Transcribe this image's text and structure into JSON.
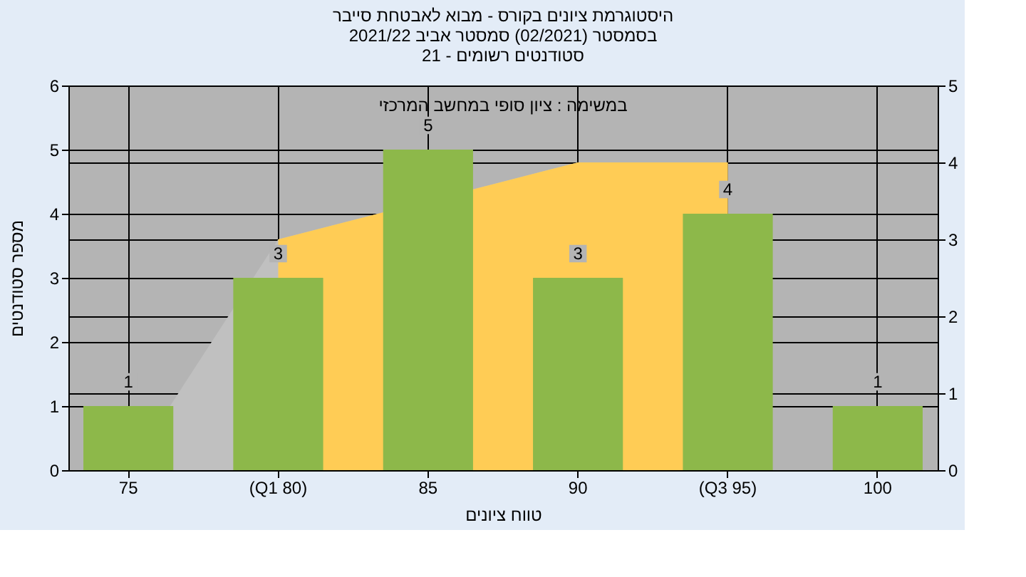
{
  "chart_data": {
    "type": "bar",
    "title": [
      "היסטוגרמת ציונים בקורס - מבוא לאבטחת סייבר",
      "בסמסטר  (02/2021)  סמסטר אביב 2021/22",
      "סטודנטים רשומים - 21"
    ],
    "annotations": [
      "במשימה : ציון סופי במחשב המרכזי"
    ],
    "xlabel": "טווח ציונים",
    "ylabel": "מספר סטודנטים",
    "categories": [
      "75",
      "(Q1 80)",
      "85",
      "90",
      "(Q3 95)",
      "100"
    ],
    "series": [
      {
        "color": "#8db84a",
        "values": [
          1,
          3,
          5,
          3,
          4,
          1
        ],
        "value_labels": [
          "1",
          "3",
          "5",
          "3",
          "4",
          "1"
        ]
      },
      {
        "type": "area",
        "axis": "y2",
        "color": "#c0c0c0",
        "values": [
          0,
          3,
          null,
          4,
          4,
          null
        ]
      },
      {
        "type": "area",
        "axis": "y2",
        "color": "#ffcc55",
        "values": [
          null,
          3,
          null,
          4,
          4,
          null
        ]
      }
    ],
    "ylim": [
      0,
      6
    ],
    "yticks": [
      0,
      1,
      2,
      3,
      4,
      5,
      6
    ],
    "y2lim": [
      0,
      5
    ],
    "y2ticks": [
      0,
      1,
      2,
      3,
      4,
      5
    ],
    "grid": true
  }
}
